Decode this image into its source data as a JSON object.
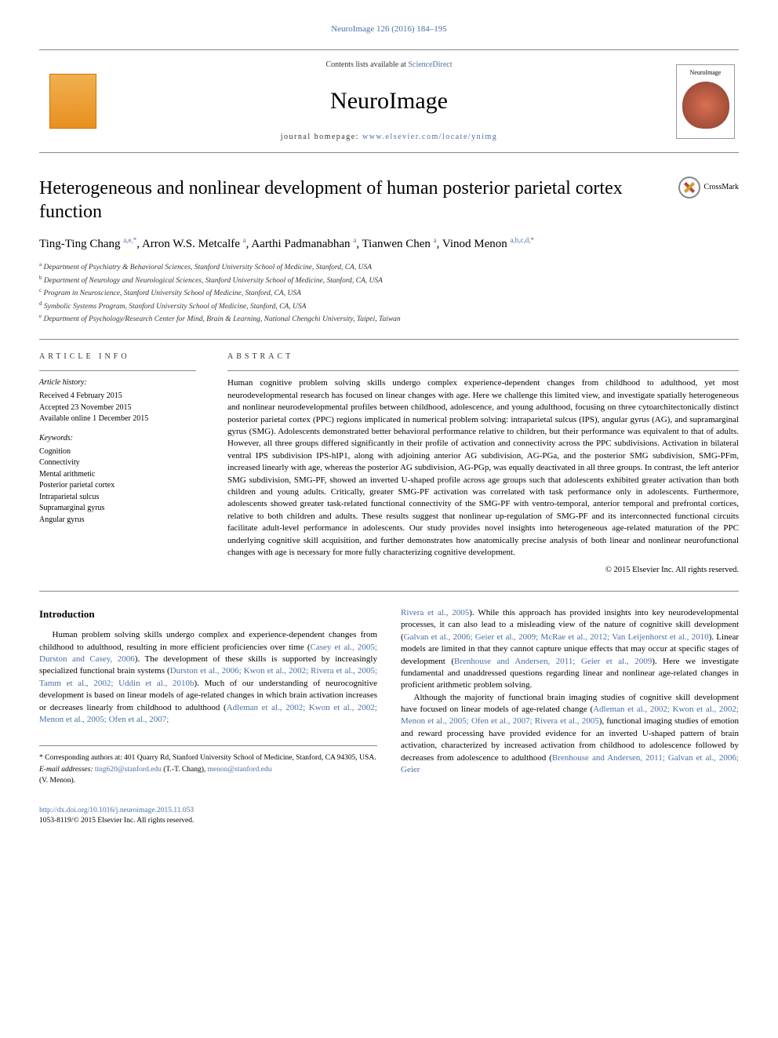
{
  "citation_link": "NeuroImage 126 (2016) 184–195",
  "masthead": {
    "contents_prefix": "Contents lists available at ",
    "contents_link": "ScienceDirect",
    "journal_name": "NeuroImage",
    "homepage_prefix": "journal homepage: ",
    "homepage_url": "www.elsevier.com/locate/ynimg",
    "cover_label": "NeuroImage"
  },
  "title": "Heterogeneous and nonlinear development of human posterior parietal cortex function",
  "crossmark": "CrossMark",
  "authors_html": "Ting-Ting Chang <span class='sup'>a,e,</span><a href='#' class='sup'>*</a>, Arron W.S. Metcalfe <span class='sup'>a</span>, Aarthi Padmanabhan <span class='sup'>a</span>, Tianwen Chen <span class='sup'>a</span>, Vinod Menon <span class='sup'>a,b,c,d,</span><a href='#' class='sup'>*</a>",
  "affiliations": [
    {
      "sup": "a",
      "text": "Department of Psychiatry & Behavioral Sciences, Stanford University School of Medicine, Stanford, CA, USA"
    },
    {
      "sup": "b",
      "text": "Department of Neurology and Neurological Sciences, Stanford University School of Medicine, Stanford, CA, USA"
    },
    {
      "sup": "c",
      "text": "Program in Neuroscience, Stanford University School of Medicine, Stanford, CA, USA"
    },
    {
      "sup": "d",
      "text": "Symbolic Systems Program, Stanford University School of Medicine, Stanford, CA, USA"
    },
    {
      "sup": "e",
      "text": "Department of Psychology/Research Center for Mind, Brain & Learning, National Chengchi University, Taipei, Taiwan"
    }
  ],
  "info": {
    "section_head": "article info",
    "history_label": "Article history:",
    "history": [
      "Received 4 February 2015",
      "Accepted 23 November 2015",
      "Available online 1 December 2015"
    ],
    "keywords_label": "Keywords:",
    "keywords": [
      "Cognition",
      "Connectivity",
      "Mental arithmetic",
      "Posterior parietal cortex",
      "Intraparietal sulcus",
      "Supramarginal gyrus",
      "Angular gyrus"
    ]
  },
  "abstract": {
    "section_head": "abstract",
    "text": "Human cognitive problem solving skills undergo complex experience-dependent changes from childhood to adulthood, yet most neurodevelopmental research has focused on linear changes with age. Here we challenge this limited view, and investigate spatially heterogeneous and nonlinear neurodevelopmental profiles between childhood, adolescence, and young adulthood, focusing on three cytoarchitectonically distinct posterior parietal cortex (PPC) regions implicated in numerical problem solving: intraparietal sulcus (IPS), angular gyrus (AG), and supramarginal gyrus (SMG). Adolescents demonstrated better behavioral performance relative to children, but their performance was equivalent to that of adults. However, all three groups differed significantly in their profile of activation and connectivity across the PPC subdivisions. Activation in bilateral ventral IPS subdivision IPS-hIP1, along with adjoining anterior AG subdivision, AG-PGa, and the posterior SMG subdivision, SMG-PFm, increased linearly with age, whereas the posterior AG subdivision, AG-PGp, was equally deactivated in all three groups. In contrast, the left anterior SMG subdivision, SMG-PF, showed an inverted U-shaped profile across age groups such that adolescents exhibited greater activation than both children and young adults. Critically, greater SMG-PF activation was correlated with task performance only in adolescents. Furthermore, adolescents showed greater task-related functional connectivity of the SMG-PF with ventro-temporal, anterior temporal and prefrontal cortices, relative to both children and adults. These results suggest that nonlinear up-regulation of SMG-PF and its interconnected functional circuits facilitate adult-level performance in adolescents. Our study provides novel insights into heterogeneous age-related maturation of the PPC underlying cognitive skill acquisition, and further demonstrates how anatomically precise analysis of both linear and nonlinear neurofunctional changes with age is necessary for more fully characterizing cognitive development.",
    "copyright": "© 2015 Elsevier Inc. All rights reserved."
  },
  "intro": {
    "heading": "Introduction",
    "col1": "Human problem solving skills undergo complex and experience-dependent changes from childhood to adulthood, resulting in more efficient proficiencies over time (<a href='#'>Casey et al., 2005; Durston and Casey, 2006</a>). The development of these skills is supported by increasingly specialized functional brain systems (<a href='#'>Durston et al., 2006; Kwon et al., 2002; Rivera et al., 2005; Tamm et al., 2002; Uddin et al., 2010b</a>). Much of our understanding of neurocognitive development is based on linear models of age-related changes in which brain activation increases or decreases linearly from childhood to adulthood (<a href='#'>Adleman et al., 2002; Kwon et al., 2002; Menon et al., 2005; Ofen et al., 2007;</a>",
    "col2_a": "<a href='#'>Rivera et al., 2005</a>). While this approach has provided insights into key neurodevelopmental processes, it can also lead to a misleading view of the nature of cognitive skill development (<a href='#'>Galvan et al., 2006; Geier et al., 2009; McRae et al., 2012; Van Leijenhorst et al., 2010</a>). Linear models are limited in that they cannot capture unique effects that may occur at specific stages of development (<a href='#'>Brenhouse and Andersen, 2011; Geier et al., 2009</a>). Here we investigate fundamental and unaddressed questions regarding linear and nonlinear age-related changes in proficient arithmetic problem solving.",
    "col2_b": "Although the majority of functional brain imaging studies of cognitive skill development have focused on linear models of age-related change (<a href='#'>Adleman et al., 2002; Kwon et al., 2002; Menon et al., 2005; Ofen et al., 2007; Rivera et al., 2005</a>), functional imaging studies of emotion and reward processing have provided evidence for an inverted U-shaped pattern of brain activation, characterized by increased activation from childhood to adolescence followed by decreases from adolescence to adulthood (<a href='#'>Brenhouse and Andersen, 2011; Galvan et al., 2006; Geier</a>"
  },
  "footnotes": {
    "corr": "* Corresponding authors at: 401 Quarry Rd, Stanford University School of Medicine, Stanford, CA 94305, USA.",
    "email_label": "E-mail addresses: ",
    "email1": "ting620@stanford.edu",
    "email1_name": " (T.-T. Chang), ",
    "email2": "menon@stanford.edu",
    "email2_name": "(V. Menon)."
  },
  "doi": {
    "url": "http://dx.doi.org/10.1016/j.neuroimage.2015.11.053",
    "issn_line": "1053-8119/© 2015 Elsevier Inc. All rights reserved."
  },
  "colors": {
    "link": "#4a6fa5",
    "text": "#000000",
    "rule": "#888888"
  }
}
